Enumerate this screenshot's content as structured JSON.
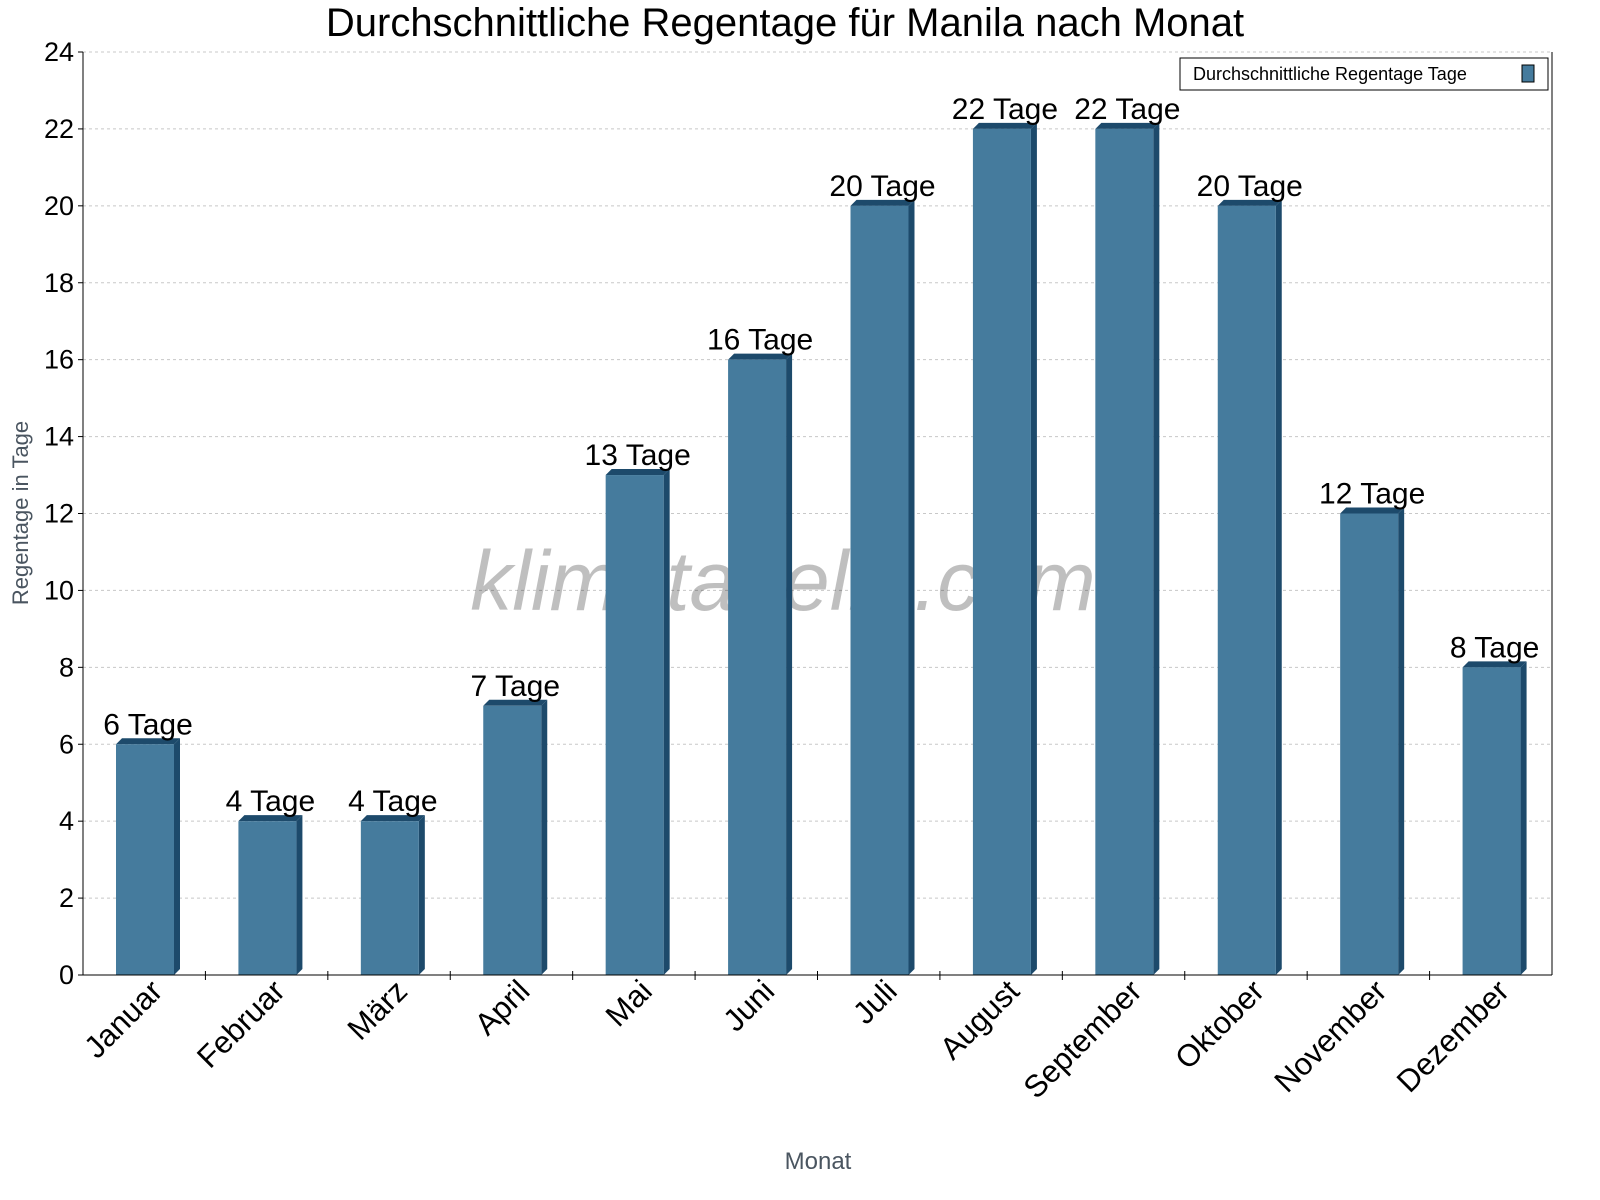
{
  "chart_data": {
    "type": "bar",
    "title": "Durchschnittliche Regentage für Manila nach Monat",
    "xlabel": "Monat",
    "ylabel": "Regentage in Tage",
    "ylim": [
      0,
      24
    ],
    "yticks": [
      0,
      2,
      4,
      6,
      8,
      10,
      12,
      14,
      16,
      18,
      20,
      22,
      24
    ],
    "grid": true,
    "legend_position": "top-right",
    "categories": [
      "Januar",
      "Februar",
      "März",
      "April",
      "Mai",
      "Juni",
      "Juli",
      "August",
      "September",
      "Oktober",
      "November",
      "Dezember"
    ],
    "series": [
      {
        "name": "Durchschnittliche Regentage Tage",
        "values": [
          6,
          4,
          4,
          7,
          13,
          16,
          20,
          22,
          22,
          20,
          12,
          8
        ],
        "labels": [
          "6 Tage",
          "4 Tage",
          "4 Tage",
          "7 Tage",
          "13 Tage",
          "16 Tage",
          "20 Tage",
          "22 Tage",
          "22 Tage",
          "20 Tage",
          "12 Tage",
          "8 Tage"
        ],
        "color": "#457b9d",
        "side_color": "#1d4a6b"
      }
    ],
    "watermark": "klimatabelle.com"
  }
}
